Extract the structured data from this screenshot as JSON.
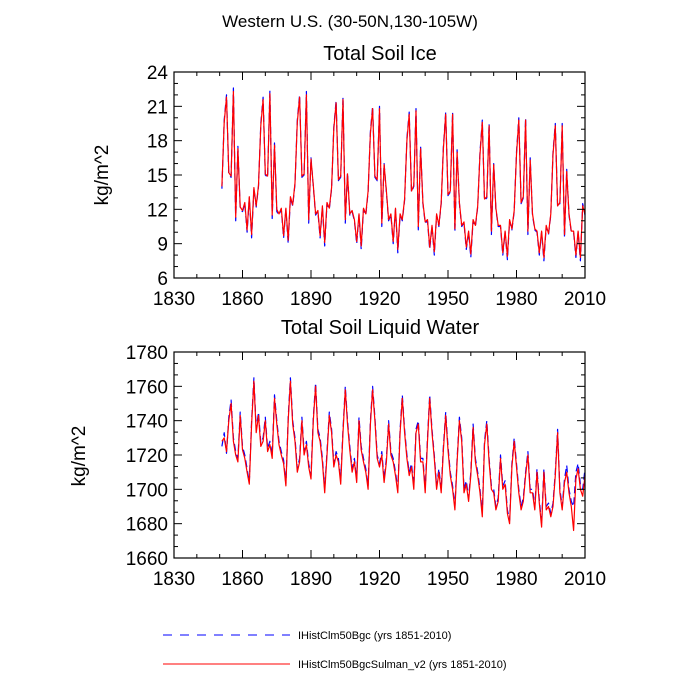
{
  "figure": {
    "title": "Western U.S. (30-50N,130-105W)"
  },
  "legend": {
    "placement": "bottom",
    "entries": [
      {
        "label": "IHistClm50Bgc (yrs 1851-2010)",
        "color": "#0000ff",
        "dash": "dashed"
      },
      {
        "label": "IHistClm50BgcSulman_v2 (yrs 1851-2010)",
        "color": "#ff0000",
        "dash": "solid"
      }
    ]
  },
  "chart_data": [
    {
      "type": "line",
      "title": "Total Soil Ice",
      "xlabel": "",
      "ylabel": "kg/m^2",
      "xlim": [
        1830,
        2010
      ],
      "ylim": [
        6,
        24
      ],
      "xticks": [
        1830,
        1860,
        1890,
        1920,
        1950,
        1980,
        2010
      ],
      "yticks": [
        6,
        9,
        12,
        15,
        18,
        21,
        24
      ],
      "grid": false,
      "x": [
        1851,
        1852,
        1853,
        1854,
        1855,
        1856,
        1857,
        1858,
        1859,
        1860,
        1861,
        1862,
        1863,
        1864,
        1865,
        1866,
        1867,
        1868,
        1869,
        1870,
        1871,
        1872,
        1873,
        1874,
        1875,
        1876,
        1877,
        1878,
        1879,
        1880,
        1881,
        1882,
        1883,
        1884,
        1885,
        1886,
        1887,
        1888,
        1889,
        1890,
        1891,
        1892,
        1893,
        1894,
        1895,
        1896,
        1897,
        1898,
        1899,
        1900,
        1901,
        1902,
        1903,
        1904,
        1905,
        1906,
        1907,
        1908,
        1909,
        1910,
        1911,
        1912,
        1913,
        1914,
        1915,
        1916,
        1917,
        1918,
        1919,
        1920,
        1921,
        1922,
        1923,
        1924,
        1925,
        1926,
        1927,
        1928,
        1929,
        1930,
        1931,
        1932,
        1933,
        1934,
        1935,
        1936,
        1937,
        1938,
        1939,
        1940,
        1941,
        1942,
        1943,
        1944,
        1945,
        1946,
        1947,
        1948,
        1949,
        1950,
        1951,
        1952,
        1953,
        1954,
        1955,
        1956,
        1957,
        1958,
        1959,
        1960,
        1961,
        1962,
        1963,
        1964,
        1965,
        1966,
        1967,
        1968,
        1969,
        1970,
        1971,
        1972,
        1973,
        1974,
        1975,
        1976,
        1977,
        1978,
        1979,
        1980,
        1981,
        1982,
        1983,
        1984,
        1985,
        1986,
        1987,
        1988,
        1989,
        1990,
        1991,
        1992,
        1993,
        1994,
        1995,
        1996,
        1997,
        1998,
        1999,
        2000,
        2001,
        2002,
        2003,
        2004,
        2005,
        2006,
        2007,
        2008,
        2009,
        2010
      ],
      "series": [
        {
          "name": "IHistClm50Bgc (yrs 1851-2010)",
          "color": "#0000ff",
          "dash": "dashed",
          "values": [
            13.8,
            19.8,
            22.0,
            15.0,
            14.8,
            22.6,
            11.0,
            17.5,
            12.0,
            11.8,
            12.5,
            10.0,
            13.0,
            9.5,
            13.8,
            12.2,
            14.0,
            19.5,
            21.8,
            15.0,
            14.8,
            22.4,
            11.2,
            17.8,
            11.8,
            11.5,
            12.0,
            9.5,
            12.0,
            9.0,
            13.0,
            12.3,
            14.2,
            19.8,
            22.0,
            14.8,
            15.0,
            22.3,
            10.8,
            16.5,
            14.0,
            11.5,
            11.8,
            9.5,
            12.2,
            8.8,
            12.5,
            12.0,
            13.8,
            19.2,
            21.5,
            14.5,
            14.8,
            21.8,
            10.8,
            15.2,
            11.5,
            11.8,
            11.0,
            9.0,
            11.5,
            8.5,
            12.0,
            11.5,
            13.5,
            18.8,
            21.0,
            14.8,
            14.5,
            21.0,
            10.5,
            16.0,
            13.5,
            11.0,
            11.5,
            9.0,
            12.0,
            8.2,
            11.5,
            11.0,
            12.8,
            18.2,
            20.5,
            13.5,
            14.0,
            20.8,
            10.2,
            17.5,
            12.5,
            10.8,
            11.0,
            8.5,
            10.5,
            8.0,
            11.5,
            10.5,
            12.5,
            17.5,
            20.5,
            13.2,
            13.5,
            20.5,
            10.0,
            17.2,
            12.5,
            10.5,
            10.8,
            8.5,
            10.0,
            7.8,
            11.0,
            10.5,
            12.2,
            17.0,
            19.8,
            12.8,
            13.0,
            19.5,
            9.8,
            16.0,
            12.0,
            10.5,
            10.5,
            8.0,
            10.0,
            7.6,
            11.0,
            10.2,
            11.8,
            17.0,
            20.0,
            12.5,
            13.0,
            20.0,
            9.8,
            16.5,
            11.5,
            10.2,
            10.0,
            8.0,
            10.0,
            7.5,
            10.5,
            9.8,
            11.5,
            17.0,
            19.5,
            12.2,
            12.5,
            19.5,
            9.5,
            15.5,
            11.5,
            10.0,
            10.0,
            7.8,
            10.0,
            7.5,
            12.5,
            11.5
          ]
        },
        {
          "name": "IHistClm50BgcSulman_v2 (yrs 1851-2010)",
          "color": "#ff0000",
          "dash": "solid",
          "values": [
            14.0,
            19.6,
            21.8,
            15.2,
            14.9,
            22.3,
            11.3,
            17.3,
            12.2,
            11.9,
            12.6,
            10.2,
            13.1,
            9.8,
            13.9,
            12.3,
            14.1,
            19.3,
            21.6,
            15.1,
            14.9,
            22.1,
            11.5,
            17.6,
            12.0,
            11.6,
            12.1,
            9.7,
            12.1,
            9.3,
            13.1,
            12.4,
            14.3,
            19.6,
            21.8,
            14.9,
            15.1,
            22.0,
            11.1,
            16.4,
            14.1,
            11.6,
            11.9,
            9.7,
            12.3,
            9.1,
            12.6,
            12.1,
            13.9,
            19.0,
            21.3,
            14.6,
            14.9,
            21.6,
            11.1,
            15.1,
            11.6,
            11.9,
            11.1,
            9.2,
            11.6,
            8.8,
            12.1,
            11.6,
            13.6,
            18.6,
            20.8,
            14.9,
            14.6,
            20.8,
            10.8,
            15.9,
            13.6,
            11.1,
            11.6,
            9.2,
            12.1,
            8.5,
            11.6,
            11.1,
            12.9,
            18.0,
            20.3,
            13.6,
            14.1,
            20.6,
            10.5,
            17.3,
            12.6,
            10.9,
            11.1,
            8.7,
            10.6,
            8.3,
            11.6,
            10.6,
            12.6,
            17.3,
            20.3,
            13.3,
            13.6,
            20.3,
            10.3,
            17.0,
            12.6,
            10.6,
            10.9,
            8.7,
            10.1,
            8.1,
            11.1,
            10.6,
            12.3,
            16.8,
            19.6,
            12.9,
            13.1,
            19.3,
            10.1,
            15.9,
            12.1,
            10.6,
            10.6,
            8.2,
            10.1,
            7.9,
            11.1,
            10.3,
            11.9,
            16.8,
            19.8,
            12.6,
            13.1,
            19.8,
            10.1,
            16.3,
            11.6,
            10.3,
            10.1,
            8.2,
            10.1,
            7.8,
            10.6,
            9.9,
            11.6,
            16.8,
            19.3,
            12.3,
            12.6,
            19.3,
            9.8,
            15.3,
            11.6,
            10.1,
            10.1,
            8.0,
            10.1,
            7.8,
            12.3,
            11.6
          ]
        }
      ]
    },
    {
      "type": "line",
      "title": "Total Soil Liquid Water",
      "xlabel": "",
      "ylabel": "kg/m^2",
      "xlim": [
        1830,
        2010
      ],
      "ylim": [
        1660,
        1780
      ],
      "xticks": [
        1830,
        1860,
        1890,
        1920,
        1950,
        1980,
        2010
      ],
      "yticks": [
        1660,
        1680,
        1700,
        1720,
        1740,
        1760,
        1780
      ],
      "grid": false,
      "x": [
        1851,
        1852,
        1853,
        1854,
        1855,
        1856,
        1857,
        1858,
        1859,
        1860,
        1861,
        1862,
        1863,
        1864,
        1865,
        1866,
        1867,
        1868,
        1869,
        1870,
        1871,
        1872,
        1873,
        1874,
        1875,
        1876,
        1877,
        1878,
        1879,
        1880,
        1881,
        1882,
        1883,
        1884,
        1885,
        1886,
        1887,
        1888,
        1889,
        1890,
        1891,
        1892,
        1893,
        1894,
        1895,
        1896,
        1897,
        1898,
        1899,
        1900,
        1901,
        1902,
        1903,
        1904,
        1905,
        1906,
        1907,
        1908,
        1909,
        1910,
        1911,
        1912,
        1913,
        1914,
        1915,
        1916,
        1917,
        1918,
        1919,
        1920,
        1921,
        1922,
        1923,
        1924,
        1925,
        1926,
        1927,
        1928,
        1929,
        1930,
        1931,
        1932,
        1933,
        1934,
        1935,
        1936,
        1937,
        1938,
        1939,
        1940,
        1941,
        1942,
        1943,
        1944,
        1945,
        1946,
        1947,
        1948,
        1949,
        1950,
        1951,
        1952,
        1953,
        1954,
        1955,
        1956,
        1957,
        1958,
        1959,
        1960,
        1961,
        1962,
        1963,
        1964,
        1965,
        1966,
        1967,
        1968,
        1969,
        1970,
        1971,
        1972,
        1973,
        1974,
        1975,
        1976,
        1977,
        1978,
        1979,
        1980,
        1981,
        1982,
        1983,
        1984,
        1985,
        1986,
        1987,
        1988,
        1989,
        1990,
        1991,
        1992,
        1993,
        1994,
        1995,
        1996,
        1997,
        1998,
        1999,
        2000,
        2001,
        2002,
        2003,
        2004,
        2005,
        2006,
        2007,
        2008,
        2009,
        2010
      ],
      "series": [
        {
          "name": "IHistClm50Bgc (yrs 1851-2010)",
          "color": "#0000ff",
          "dash": "dashed",
          "values": [
            1725,
            1733,
            1721,
            1742,
            1752,
            1730,
            1722,
            1718,
            1745,
            1725,
            1720,
            1712,
            1704,
            1740,
            1765,
            1735,
            1745,
            1727,
            1730,
            1742,
            1724,
            1728,
            1720,
            1755,
            1740,
            1728,
            1722,
            1717,
            1703,
            1742,
            1765,
            1740,
            1730,
            1712,
            1718,
            1742,
            1722,
            1728,
            1715,
            1708,
            1742,
            1762,
            1735,
            1730,
            1718,
            1700,
            1722,
            1745,
            1735,
            1715,
            1722,
            1718,
            1705,
            1735,
            1760,
            1740,
            1725,
            1712,
            1718,
            1706,
            1742,
            1725,
            1718,
            1712,
            1702,
            1740,
            1760,
            1742,
            1720,
            1715,
            1722,
            1706,
            1718,
            1740,
            1722,
            1718,
            1710,
            1700,
            1735,
            1755,
            1735,
            1720,
            1710,
            1715,
            1702,
            1735,
            1740,
            1718,
            1718,
            1700,
            1730,
            1755,
            1735,
            1720,
            1702,
            1712,
            1700,
            1725,
            1745,
            1725,
            1710,
            1702,
            1690,
            1718,
            1742,
            1730,
            1700,
            1705,
            1695,
            1710,
            1738,
            1718,
            1710,
            1700,
            1686,
            1728,
            1740,
            1718,
            1702,
            1700,
            1690,
            1695,
            1720,
            1702,
            1705,
            1688,
            1682,
            1715,
            1730,
            1715,
            1700,
            1690,
            1695,
            1710,
            1722,
            1700,
            1700,
            1690,
            1712,
            1694,
            1680,
            1712,
            1690,
            1692,
            1686,
            1692,
            1710,
            1735,
            1700,
            1690,
            1706,
            1714,
            1700,
            1693,
            1690,
            1710,
            1715,
            1703,
            1700,
            1712
          ]
        },
        {
          "name": "IHistClm50BgcSulman_v2 (yrs 1851-2010)",
          "color": "#ff0000",
          "dash": "solid",
          "values": [
            1728,
            1730,
            1722,
            1740,
            1750,
            1728,
            1720,
            1716,
            1743,
            1723,
            1718,
            1710,
            1703,
            1738,
            1763,
            1733,
            1743,
            1725,
            1728,
            1740,
            1722,
            1726,
            1718,
            1753,
            1738,
            1726,
            1720,
            1715,
            1702,
            1740,
            1763,
            1738,
            1728,
            1710,
            1716,
            1740,
            1720,
            1726,
            1713,
            1706,
            1740,
            1760,
            1733,
            1728,
            1716,
            1698,
            1720,
            1743,
            1733,
            1713,
            1720,
            1716,
            1703,
            1733,
            1758,
            1738,
            1723,
            1710,
            1716,
            1704,
            1740,
            1723,
            1716,
            1710,
            1700,
            1738,
            1758,
            1740,
            1718,
            1713,
            1720,
            1704,
            1716,
            1738,
            1720,
            1716,
            1708,
            1698,
            1733,
            1753,
            1733,
            1718,
            1708,
            1713,
            1700,
            1733,
            1738,
            1716,
            1716,
            1698,
            1728,
            1753,
            1733,
            1718,
            1700,
            1710,
            1698,
            1723,
            1743,
            1723,
            1708,
            1700,
            1688,
            1716,
            1740,
            1728,
            1698,
            1703,
            1693,
            1708,
            1736,
            1716,
            1708,
            1698,
            1684,
            1726,
            1738,
            1716,
            1700,
            1698,
            1688,
            1693,
            1718,
            1700,
            1703,
            1686,
            1680,
            1713,
            1728,
            1713,
            1698,
            1688,
            1693,
            1708,
            1720,
            1698,
            1698,
            1688,
            1710,
            1692,
            1678,
            1710,
            1688,
            1690,
            1684,
            1690,
            1708,
            1733,
            1698,
            1688,
            1704,
            1710,
            1698,
            1690,
            1676,
            1706,
            1712,
            1700,
            1696,
            1708
          ]
        }
      ]
    }
  ]
}
